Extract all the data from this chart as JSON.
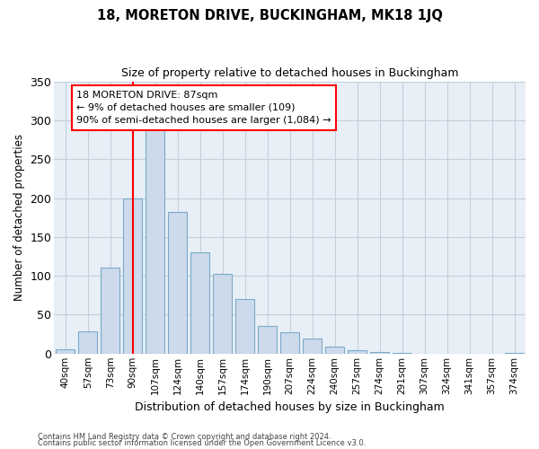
{
  "title1": "18, MORETON DRIVE, BUCKINGHAM, MK18 1JQ",
  "title2": "Size of property relative to detached houses in Buckingham",
  "xlabel": "Distribution of detached houses by size in Buckingham",
  "ylabel": "Number of detached properties",
  "categories": [
    "40sqm",
    "57sqm",
    "73sqm",
    "90sqm",
    "107sqm",
    "124sqm",
    "140sqm",
    "157sqm",
    "174sqm",
    "190sqm",
    "207sqm",
    "224sqm",
    "240sqm",
    "257sqm",
    "274sqm",
    "291sqm",
    "307sqm",
    "324sqm",
    "341sqm",
    "357sqm",
    "374sqm"
  ],
  "values": [
    6,
    29,
    111,
    200,
    293,
    182,
    130,
    102,
    70,
    35,
    27,
    19,
    9,
    4,
    2,
    1,
    0,
    0,
    0,
    0,
    1
  ],
  "bar_color": "#ccdaeb",
  "bar_edge_color": "#7aaac8",
  "grid_color": "#c5d0dc",
  "background_color": "#e8eff6",
  "vline_x": 3,
  "vline_color": "red",
  "annotation_text": "18 MORETON DRIVE: 87sqm\n← 9% of detached houses are smaller (109)\n90% of semi-detached houses are larger (1,084) →",
  "ylim": [
    0,
    350
  ],
  "yticks": [
    0,
    50,
    100,
    150,
    200,
    250,
    300,
    350
  ],
  "footer1": "Contains HM Land Registry data © Crown copyright and database right 2024.",
  "footer2": "Contains public sector information licensed under the Open Government Licence v3.0."
}
